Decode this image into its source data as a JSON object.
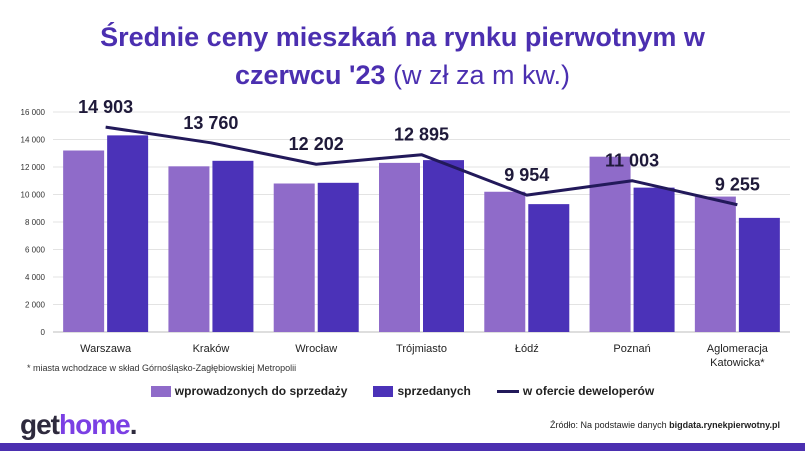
{
  "title": {
    "line1": "Średnie ceny mieszkań na rynku pierwotnym w",
    "line2_bold": "czerwcu '23",
    "line2_rest": "(w zł za m kw.)"
  },
  "footnote": "* miasta wchodzace w skład Górnośląsko-Zagłębiowskiej Metropolii",
  "source": {
    "prefix": "Źródło: Na podstawie danych",
    "bold": "bigdata.rynekpierwotny.pl"
  },
  "logo": {
    "part1": "get",
    "part2": "home",
    "dot": "."
  },
  "colors": {
    "introduced": "#8f6bc9",
    "sold": "#4b32b8",
    "line": "#22195a",
    "title": "#4b2fb0"
  },
  "chart_data": {
    "type": "bar",
    "categories": [
      "Warszawa",
      "Kraków",
      "Wrocław",
      "Trójmiasto",
      "Łódź",
      "Poznań",
      "Aglomeracja Katowicka*"
    ],
    "series": [
      {
        "name": "wprowadzonych do sprzedaży",
        "type": "bar",
        "values": [
          13200,
          12050,
          10800,
          12300,
          10200,
          12750,
          9850
        ]
      },
      {
        "name": "sprzedanych",
        "type": "bar",
        "values": [
          14300,
          12450,
          10850,
          12500,
          9300,
          10500,
          8300
        ]
      },
      {
        "name": "w ofercie deweloperów",
        "type": "line",
        "values": [
          14903,
          13760,
          12202,
          12895,
          9954,
          11003,
          9255
        ]
      }
    ],
    "line_labels": [
      "14 903",
      "13 760",
      "12 202",
      "12 895",
      "9 954",
      "11 003",
      "9 255"
    ],
    "yticks": [
      0,
      2000,
      4000,
      6000,
      8000,
      10000,
      12000,
      14000,
      16000
    ],
    "ytick_labels": [
      "0",
      "2 000",
      "4 000",
      "6 000",
      "8 000",
      "10 000",
      "12 000",
      "14 000",
      "16 000"
    ],
    "ylim": [
      0,
      16000
    ],
    "grid": true,
    "legend_position": "bottom"
  }
}
